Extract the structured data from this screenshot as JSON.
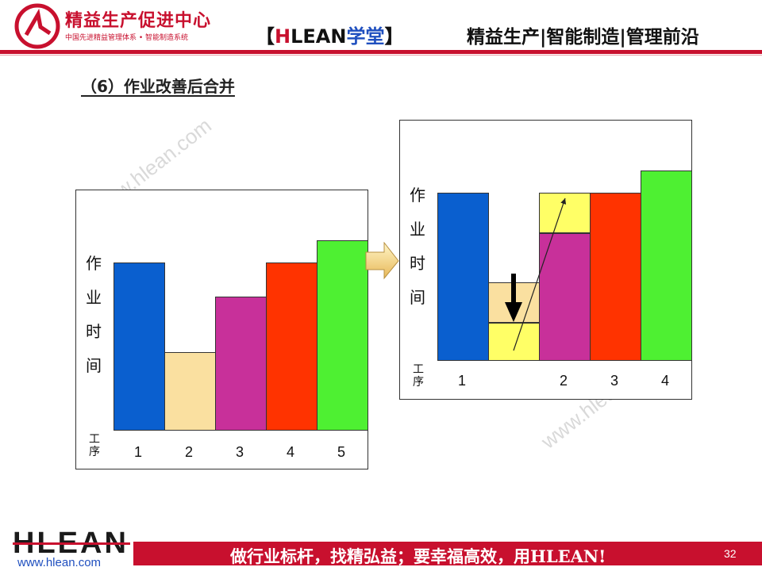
{
  "header": {
    "org_name": "精益生产促进中心",
    "org_sub": "中国先进精益管理体系 • 智能制造系统",
    "brand_open": "【",
    "brand_h": "H",
    "brand_lean": "LEAN",
    "brand_xuetang": "学堂",
    "brand_close": "】",
    "tagline": "精益生产|智能制造|管理前沿"
  },
  "section_title": "（6）作业改善后合并",
  "watermark": "www.hlean.com",
  "colors": {
    "blue": "#0a5fcf",
    "tan": "#fae0a0",
    "magenta": "#c8309a",
    "red": "#ff3300",
    "green": "#4ef032",
    "yellow": "#ffff66",
    "brand_red": "#c8102e"
  },
  "chart_data": [
    {
      "type": "bar",
      "title": "",
      "ylabel": "作业时间",
      "xlabel": "工序",
      "categories": [
        "1",
        "2",
        "3",
        "4",
        "5"
      ],
      "values": [
        75,
        35,
        60,
        75,
        85
      ],
      "ylim": [
        0,
        85
      ]
    },
    {
      "type": "bar",
      "stacked": true,
      "title": "",
      "ylabel": "作业时间",
      "xlabel": "工序",
      "categories": [
        "1",
        "",
        "2",
        "3",
        "4"
      ],
      "tick_labels": [
        "1",
        "2",
        "3",
        "4"
      ],
      "values": [
        75,
        35,
        75,
        75,
        85
      ],
      "ylim": [
        0,
        85
      ],
      "annotations": [
        "down-arrow on bar 2",
        "thin arrow from bar 2 bottom segment to bar 3 top segment"
      ]
    }
  ],
  "footer": {
    "logo": "HLEAN",
    "url": "www.hlean.com",
    "slogan": "做行业标杆，找精弘益；要幸福高效，用HLEAN!",
    "page_number": "32"
  }
}
